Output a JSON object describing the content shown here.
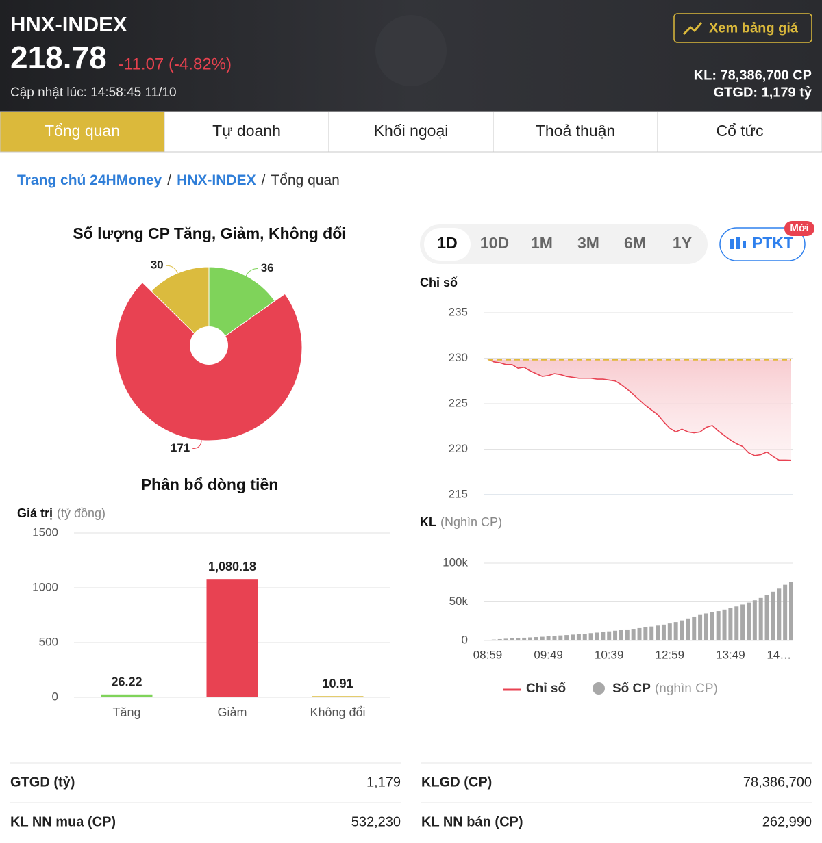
{
  "header": {
    "title": "HNX-INDEX",
    "price": "218.78",
    "change": "-11.07 (-4.82%)",
    "updated": "Cập nhật lúc: 14:58:45 11/10",
    "button": "Xem bảng giá",
    "volume": "KL: 78,386,700 CP",
    "value": "GTGD: 1,179 tỷ"
  },
  "tabs": {
    "items": [
      "Tổng quan",
      "Tự doanh",
      "Khối ngoại",
      "Thoả thuận",
      "Cổ tức"
    ],
    "active": 0
  },
  "breadcrumb": {
    "items": [
      "Trang chủ 24HMoney",
      "HNX-INDEX",
      "Tổng quan"
    ],
    "separator": "/"
  },
  "periods": {
    "items": [
      "1D",
      "10D",
      "1M",
      "3M",
      "6M",
      "1Y"
    ],
    "active": 0
  },
  "ptkt": {
    "label": "PTKT",
    "badge": "Mới"
  },
  "chart_data": [
    {
      "type": "pie",
      "title": "Số lượng CP Tăng, Giảm, Không đổi",
      "values": [
        36,
        171,
        30
      ],
      "colors": [
        "#7fd35a",
        "#e84252",
        "#dbbb3e"
      ],
      "active_index": 1
    },
    {
      "type": "bar",
      "title": "Phân bổ dòng tiền",
      "ylabel": "Giá trị",
      "yunit": "(tỷ đồng)",
      "categories": [
        "Tăng",
        "Giảm",
        "Không đổi"
      ],
      "values": [
        26.22,
        1080.18,
        10.91
      ],
      "value_labels": [
        "26.22",
        "1,080.18",
        "10.91"
      ],
      "colors": [
        "#7fd35a",
        "#e84252",
        "#dbbb3e"
      ],
      "ylim": [
        0,
        1500
      ],
      "yticks": [
        0,
        500,
        1000,
        1500
      ],
      "grid": true
    },
    {
      "type": "line",
      "ylabel": "Chỉ số",
      "y2label": "KL",
      "y2unit": "(Nghìn CP)",
      "categories": [
        "08:59",
        null,
        null,
        null,
        null,
        null,
        null,
        null,
        null,
        null,
        "09:49",
        null,
        null,
        null,
        null,
        null,
        null,
        null,
        null,
        null,
        "10:39",
        null,
        null,
        null,
        null,
        null,
        null,
        null,
        null,
        null,
        "12:59",
        null,
        null,
        null,
        null,
        null,
        null,
        null,
        null,
        null,
        "13:49",
        null,
        null,
        null,
        null,
        null,
        null,
        null,
        "14…",
        null,
        null
      ],
      "ylim": [
        215,
        235
      ],
      "yticks": [
        215,
        220,
        225,
        230,
        235
      ],
      "y2lim": [
        0,
        100000
      ],
      "y2ticks": [
        0,
        {
          "value": 50000,
          "label": "50k"
        },
        {
          "value": 100000,
          "label": "100k"
        }
      ],
      "reference": 229.85,
      "reference_color": "#e0b83a",
      "grid": true,
      "series": [
        {
          "name": "Chỉ số",
          "color": "#e84252",
          "values": [
            229.9,
            229.6,
            229.5,
            229.3,
            229.3,
            228.9,
            229.0,
            228.6,
            228.3,
            228.0,
            228.1,
            228.3,
            228.2,
            228.0,
            227.9,
            227.8,
            227.8,
            227.8,
            227.7,
            227.7,
            227.6,
            227.5,
            227.1,
            226.6,
            226.0,
            225.4,
            224.8,
            224.3,
            223.8,
            223.0,
            222.3,
            221.9,
            222.2,
            221.9,
            221.8,
            221.9,
            222.4,
            222.6,
            222.0,
            221.5,
            221.0,
            220.6,
            220.3,
            219.6,
            219.3,
            219.4,
            219.7,
            219.2,
            218.8,
            218.8,
            218.78
          ]
        },
        {
          "name": "Số CP",
          "unit": "(nghìn CP)",
          "type": "bar",
          "axis": "y2",
          "color": "#a8a8a8",
          "values": [
            500,
            1200,
            1800,
            2300,
            2800,
            3200,
            3600,
            4000,
            4400,
            4800,
            5300,
            5900,
            6500,
            7000,
            7600,
            8200,
            8800,
            9500,
            10200,
            11000,
            11800,
            12600,
            13400,
            14200,
            15000,
            16000,
            17000,
            18000,
            19200,
            20500,
            22000,
            23800,
            26000,
            28500,
            31000,
            33000,
            35000,
            36500,
            38000,
            40000,
            42000,
            44000,
            46500,
            49000,
            52000,
            55000,
            59000,
            63000,
            67000,
            72000,
            76000
          ]
        }
      ]
    }
  ],
  "stats": [
    {
      "label": "GTGD (tỷ)",
      "value": "1,179"
    },
    {
      "label": "KL NN mua (CP)",
      "value": "532,230"
    },
    {
      "label": "KLGD (CP)",
      "value": "78,386,700"
    },
    {
      "label": "KL NN bán (CP)",
      "value": "262,990"
    }
  ]
}
